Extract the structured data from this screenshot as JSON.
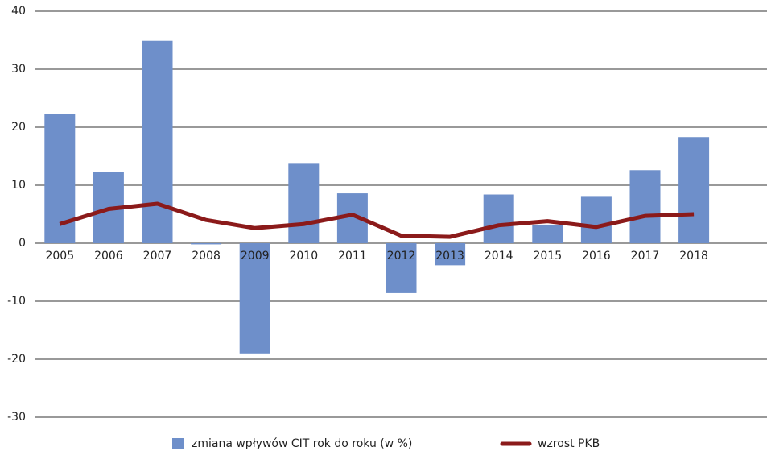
{
  "chart_data": {
    "type": "bar-line",
    "categories": [
      "2005",
      "2006",
      "2007",
      "2008",
      "2009",
      "2010",
      "2011",
      "2012",
      "2013",
      "2014",
      "2015",
      "2016",
      "2017",
      "2018"
    ],
    "series": [
      {
        "name": "zmiana wpływów CIT rok do roku (w %)",
        "type": "bar",
        "color": "#6e8fca",
        "values": [
          22.3,
          12.3,
          34.9,
          -0.2,
          -19.0,
          13.7,
          8.6,
          -8.6,
          -3.8,
          8.4,
          3.2,
          8.0,
          12.6,
          18.3
        ]
      },
      {
        "name": "wzrost PKB",
        "type": "line",
        "color": "#8b1a1a",
        "values": [
          3.3,
          5.9,
          6.8,
          4.0,
          2.6,
          3.3,
          4.9,
          1.3,
          1.1,
          3.1,
          3.8,
          2.8,
          4.7,
          5.0
        ]
      }
    ],
    "ylim": [
      -30,
      40
    ],
    "yticks": [
      -30,
      -20,
      -10,
      0,
      10,
      20,
      30,
      40
    ],
    "grid": true,
    "legend": "bottom"
  }
}
